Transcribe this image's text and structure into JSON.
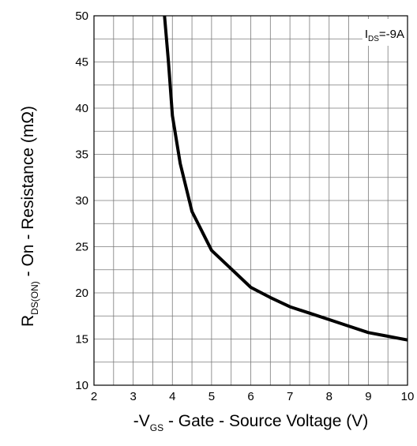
{
  "chart_data": {
    "type": "line",
    "x_axis": {
      "label_prefix": "-V",
      "label_sub": "GS",
      "label_suffix": " - Gate - Source Voltage (V)",
      "range": [
        2,
        10
      ],
      "ticks": [
        2,
        3,
        4,
        5,
        6,
        7,
        8,
        9,
        10
      ],
      "minor_step": 0.5
    },
    "y_axis": {
      "label_prefix": "R",
      "label_sub": "DS(ON)",
      "label_suffix": " - On - Resistance (mΩ)",
      "range": [
        10,
        50
      ],
      "ticks": [
        10,
        15,
        20,
        25,
        30,
        35,
        40,
        45,
        50
      ],
      "minor_step": 2.5
    },
    "grid": true,
    "annotation": {
      "prefix": "I",
      "sub": "DS",
      "suffix": "=-9A",
      "position": "top-right"
    },
    "series": [
      {
        "x": [
          3.8,
          3.9,
          4.0,
          4.2,
          4.5,
          5.0,
          5.5,
          6.0,
          6.5,
          7.0,
          7.5,
          8.0,
          8.5,
          9.0,
          9.5,
          10.0
        ],
        "y": [
          50.0,
          45.0,
          39.2,
          34.0,
          28.8,
          24.6,
          22.6,
          20.6,
          19.5,
          18.5,
          17.8,
          17.1,
          16.4,
          15.7,
          15.3,
          14.9
        ]
      }
    ]
  }
}
